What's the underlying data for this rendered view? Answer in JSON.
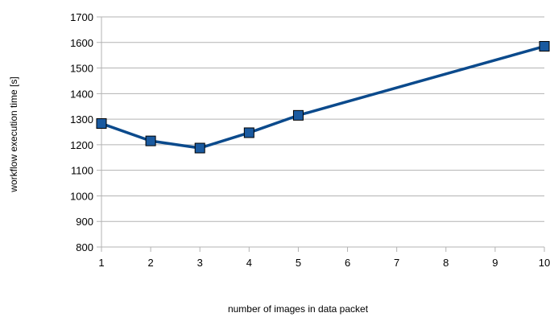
{
  "chart_data": {
    "type": "line",
    "title": "",
    "xlabel": "number of images in data packet",
    "ylabel": "workflow execution time [s]",
    "x": [
      1,
      2,
      3,
      4,
      5,
      10
    ],
    "series": [
      {
        "name": "",
        "values": [
          1283,
          1215,
          1187,
          1247,
          1315,
          1585
        ]
      }
    ],
    "xticks": [
      "1",
      "2",
      "3",
      "4",
      "5",
      "6",
      "7",
      "8",
      "9",
      "10"
    ],
    "yticks": [
      "800",
      "900",
      "1000",
      "1100",
      "1200",
      "1300",
      "1400",
      "1500",
      "1600",
      "1700"
    ],
    "xlim": [
      1,
      10
    ],
    "ylim": [
      800,
      1700
    ],
    "grid": "horizontal",
    "legend": "none",
    "colors": {
      "line": "#0b4a8c",
      "marker": "#1a5aa0",
      "marker_edge": "#000000",
      "grid": "#b3b3b3",
      "axis": "#b3b3b3"
    }
  }
}
